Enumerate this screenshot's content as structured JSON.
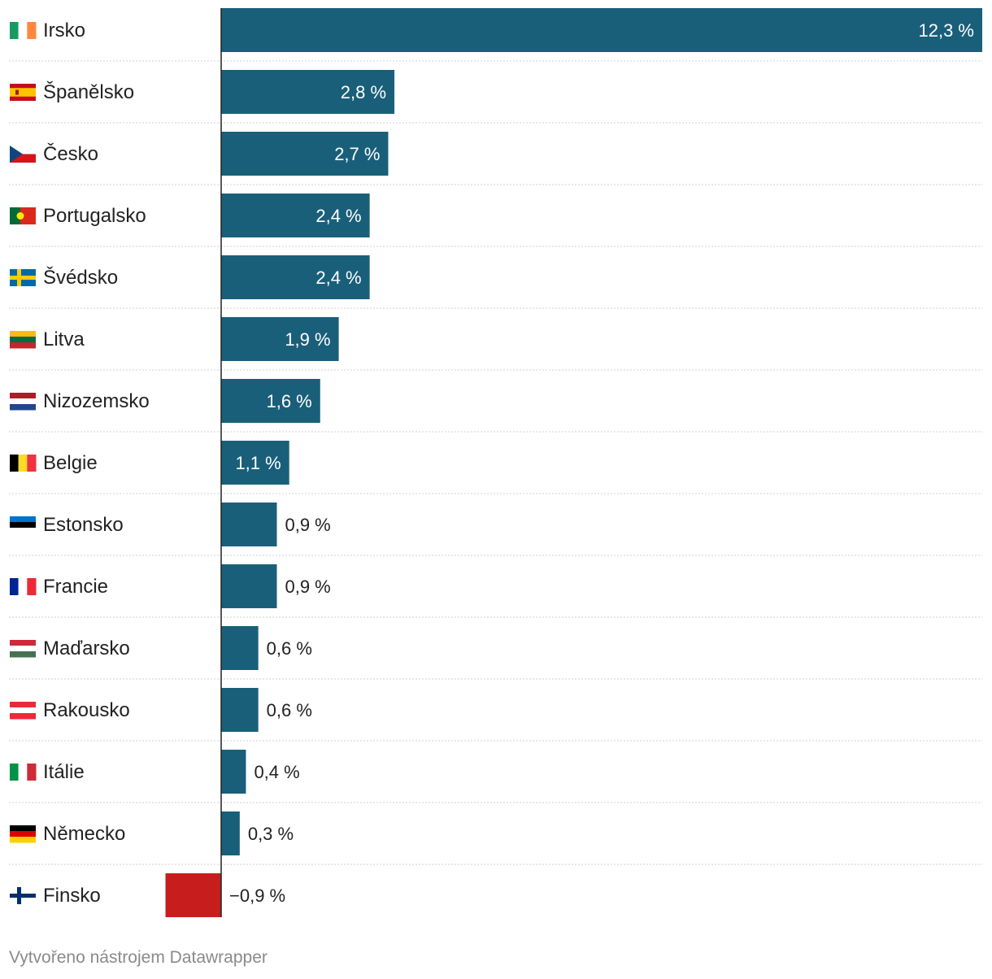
{
  "chart_data": {
    "type": "bar",
    "orientation": "horizontal",
    "categories": [
      "Irsko",
      "Španělsko",
      "Česko",
      "Portugalsko",
      "Švédsko",
      "Litva",
      "Nizozemsko",
      "Belgie",
      "Estonsko",
      "Francie",
      "Maďarsko",
      "Rakousko",
      "Itálie",
      "Německo",
      "Finsko"
    ],
    "values": [
      12.3,
      2.8,
      2.7,
      2.4,
      2.4,
      1.9,
      1.6,
      1.1,
      0.9,
      0.9,
      0.6,
      0.6,
      0.4,
      0.3,
      -0.9
    ],
    "value_labels": [
      "12,3 %",
      "2,8 %",
      "2,7 %",
      "2,4 %",
      "2,4 %",
      "1,9 %",
      "1,6 %",
      "1,1 %",
      "0,9 %",
      "0,9 %",
      "0,6 %",
      "0,6 %",
      "0,4 %",
      "0,3 %",
      "−0,9 %"
    ],
    "flags": [
      "ireland-flag",
      "spain-flag",
      "czech-flag",
      "portugal-flag",
      "sweden-flag",
      "lithuania-flag",
      "netherlands-flag",
      "belgium-flag",
      "estonia-flag",
      "france-flag",
      "hungary-flag",
      "austria-flag",
      "italy-flag",
      "germany-flag",
      "finland-flag"
    ],
    "xlim": [
      -0.9,
      12.3
    ],
    "grid": false,
    "colors": {
      "positive": "#1a5f7a",
      "negative": "#c71e1d"
    }
  },
  "footer": {
    "credit": "Vytvořeno nástrojem Datawrapper"
  }
}
